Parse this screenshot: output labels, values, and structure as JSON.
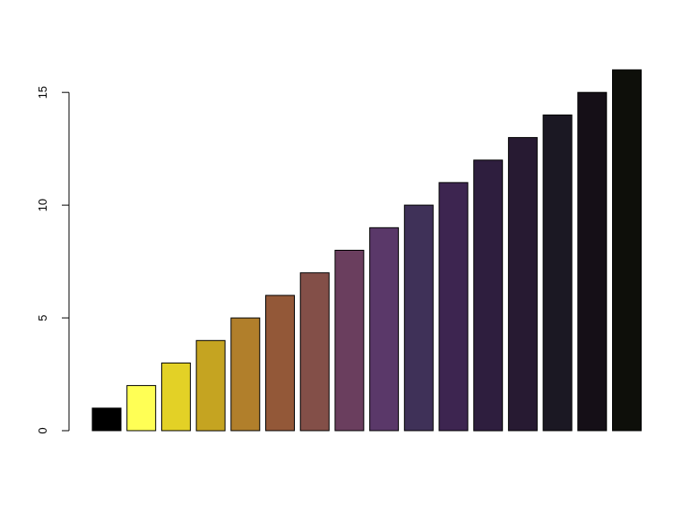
{
  "chart_data": {
    "type": "bar",
    "title": "",
    "xlabel": "",
    "ylabel": "",
    "values": [
      1,
      2,
      3,
      4,
      5,
      6,
      7,
      8,
      9,
      10,
      11,
      12,
      13,
      14,
      15,
      16
    ],
    "colors": [
      "#000000",
      "#ffff55",
      "#e3d126",
      "#c5a421",
      "#b17f2b",
      "#935838",
      "#834f48",
      "#6a3e5e",
      "#5a3869",
      "#3f3158",
      "#3d2550",
      "#2e1e3e",
      "#271a32",
      "#1b1823",
      "#150f17",
      "#0e0f0a"
    ],
    "ylim": [
      0,
      16
    ],
    "yticks": [
      0,
      5,
      10,
      15
    ],
    "ytick_labels": [
      "0",
      "5",
      "10",
      "15"
    ],
    "grid": false,
    "legend": "none"
  }
}
